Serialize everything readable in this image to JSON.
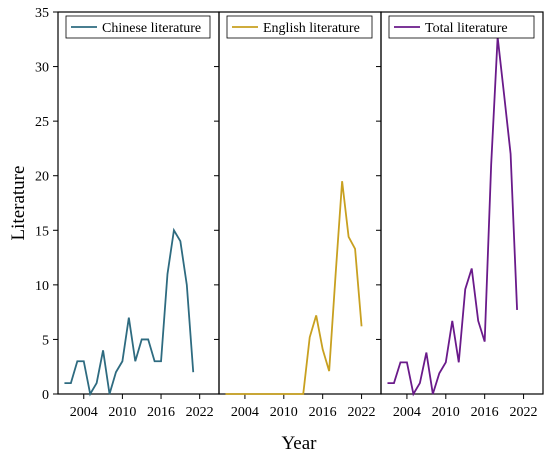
{
  "chart_data": {
    "type": "line",
    "ylabel": "Literature",
    "xlabel": "Year",
    "ylim": [
      0,
      35
    ],
    "yticks": [
      0,
      5,
      10,
      15,
      20,
      25,
      30,
      35
    ],
    "xlim": [
      2000,
      2025
    ],
    "xticks": [
      2004,
      2010,
      2016,
      2022
    ],
    "xtick_labels": [
      "2004",
      "2010",
      "2016",
      "2022"
    ],
    "grid": false,
    "legend_placement": "top-left",
    "panels": [
      {
        "series": [
          {
            "name": "Chinese literature",
            "color": "#2e6b80",
            "x": [
              2001,
              2002,
              2003,
              2004,
              2005,
              2006,
              2007,
              2008,
              2009,
              2010,
              2011,
              2012,
              2013,
              2014,
              2015,
              2016,
              2017,
              2018,
              2019,
              2020,
              2021,
              2022,
              2023
            ],
            "y": [
              1,
              1,
              3,
              3,
              0,
              1,
              4,
              0,
              2,
              3,
              7,
              3,
              5,
              5,
              3,
              3,
              11,
              15,
              14,
              10,
              2,
              null,
              null
            ]
          }
        ]
      },
      {
        "series": [
          {
            "name": "English literature",
            "color": "#c8a020",
            "x": [
              2001,
              2002,
              2003,
              2004,
              2005,
              2006,
              2007,
              2008,
              2009,
              2010,
              2011,
              2012,
              2013,
              2014,
              2015,
              2016,
              2017,
              2018,
              2019,
              2020,
              2021,
              2022,
              2023
            ],
            "y": [
              0,
              0,
              0,
              0,
              0,
              0,
              0,
              0,
              0,
              0,
              0,
              0,
              0,
              5.2,
              7.2,
              4.1,
              2.1,
              11,
              19.5,
              14.4,
              13.3,
              6.2,
              null
            ]
          }
        ]
      },
      {
        "series": [
          {
            "name": "Total literature",
            "color": "#6a1a8a",
            "x": [
              2001,
              2002,
              2003,
              2004,
              2005,
              2006,
              2007,
              2008,
              2009,
              2010,
              2011,
              2012,
              2013,
              2014,
              2015,
              2016,
              2017,
              2018,
              2019,
              2020,
              2021,
              2022,
              2023
            ],
            "y": [
              1,
              1,
              2.9,
              2.9,
              0,
              1,
              3.8,
              0,
              1.9,
              2.9,
              6.7,
              2.9,
              9.6,
              11.5,
              6.7,
              4.8,
              21,
              32.7,
              27.4,
              22,
              7.7,
              null,
              null
            ]
          }
        ]
      }
    ]
  }
}
